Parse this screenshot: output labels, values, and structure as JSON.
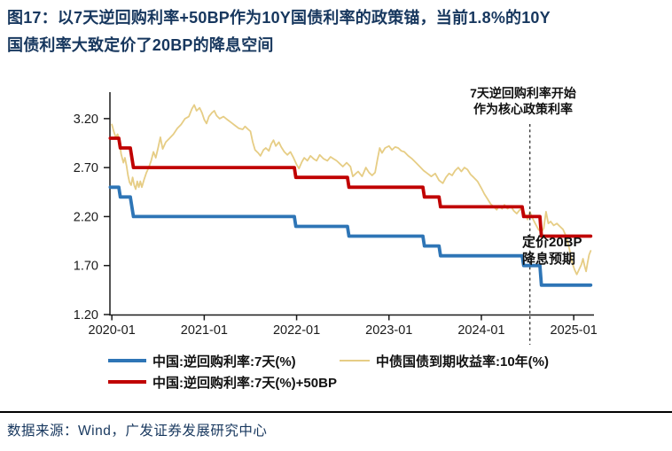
{
  "title": {
    "line1": "图17：以7天逆回购利率+50BP作为10Y国债利率的政策锚，当前1.8%的10Y",
    "line2": "国债利率大致定价了20BP的降息空间"
  },
  "annotations": {
    "policy": {
      "line1": "7天逆回购利率开始",
      "line2": "作为核心政策利率"
    },
    "pricing": {
      "line1": "定价20BP",
      "line2": "降息预期"
    }
  },
  "legend": [
    {
      "label": "中国:逆回购利率:7天(%)",
      "color": "#2e75b6"
    },
    {
      "label": "中债国债到期收益率:10年(%)",
      "color": "#e6cd85"
    },
    {
      "label": "中国:逆回购利率:7天(%)+50BP",
      "color": "#c00000"
    }
  ],
  "source": "数据来源：Wind，广发证券发展研究中心",
  "colors": {
    "title_navy": "#17375e",
    "repo_blue": "#2e75b6",
    "anchor_red": "#c00000",
    "cgb_gold": "#e6cd85",
    "axis_black": "#1a1a1a",
    "dashed_gray": "#3c3c3c"
  },
  "chart_data": {
    "type": "line",
    "x_unit": "months since 2020-01",
    "xlim": [
      -0.25,
      62.4
    ],
    "ylim": [
      1.2,
      3.47
    ],
    "grid": false,
    "y_ticks": [
      {
        "v": 3.2,
        "label": "3.20"
      },
      {
        "v": 2.7,
        "label": "2.70"
      },
      {
        "v": 2.2,
        "label": "2.20"
      },
      {
        "v": 1.7,
        "label": "1.70"
      },
      {
        "v": 1.2,
        "label": "1.20"
      }
    ],
    "x_ticks": [
      {
        "m": 0,
        "label": "2020-01"
      },
      {
        "m": 12,
        "label": "2021-01"
      },
      {
        "m": 24,
        "label": "2022-01"
      },
      {
        "m": 36,
        "label": "2023-01"
      },
      {
        "m": 48,
        "label": "2024-01"
      },
      {
        "m": 60,
        "label": "2025-01"
      }
    ],
    "dashed_line_month": 54.3,
    "series": [
      {
        "name": "中债国债到期收益率:10年(%)",
        "color": "#e6cd85",
        "width": 1.8,
        "points": [
          [
            0,
            3.14
          ],
          [
            0.25,
            3.07
          ],
          [
            0.5,
            3.01
          ],
          [
            0.75,
            3.04
          ],
          [
            1,
            2.96
          ],
          [
            1.2,
            2.84
          ],
          [
            1.5,
            2.75
          ],
          [
            1.7,
            2.8
          ],
          [
            1.9,
            2.72
          ],
          [
            2.1,
            2.62
          ],
          [
            2.3,
            2.55
          ],
          [
            2.5,
            2.52
          ],
          [
            2.7,
            2.6
          ],
          [
            2.9,
            2.52
          ],
          [
            3.1,
            2.48
          ],
          [
            3.3,
            2.56
          ],
          [
            3.5,
            2.5
          ],
          [
            3.7,
            2.56
          ],
          [
            3.9,
            2.5
          ],
          [
            4.2,
            2.58
          ],
          [
            4.5,
            2.65
          ],
          [
            4.8,
            2.7
          ],
          [
            5.1,
            2.77
          ],
          [
            5.4,
            2.86
          ],
          [
            5.7,
            2.8
          ],
          [
            6,
            2.9
          ],
          [
            6.3,
            3.01
          ],
          [
            6.6,
            2.89
          ],
          [
            7,
            2.96
          ],
          [
            7.5,
            3.0
          ],
          [
            8,
            3.04
          ],
          [
            8.5,
            3.1
          ],
          [
            9,
            3.14
          ],
          [
            9.5,
            3.2
          ],
          [
            10,
            3.22
          ],
          [
            10.4,
            3.3
          ],
          [
            10.7,
            3.34
          ],
          [
            11,
            3.28
          ],
          [
            11.4,
            3.31
          ],
          [
            11.7,
            3.26
          ],
          [
            12,
            3.19
          ],
          [
            12.3,
            3.15
          ],
          [
            12.6,
            3.22
          ],
          [
            13,
            3.26
          ],
          [
            13.3,
            3.28
          ],
          [
            13.6,
            3.23
          ],
          [
            14,
            3.2
          ],
          [
            14.5,
            3.22
          ],
          [
            15,
            3.19
          ],
          [
            15.5,
            3.16
          ],
          [
            16,
            3.13
          ],
          [
            16.5,
            3.1
          ],
          [
            17,
            3.09
          ],
          [
            17.3,
            3.12
          ],
          [
            17.7,
            3.09
          ],
          [
            18,
            3.07
          ],
          [
            18.3,
            2.96
          ],
          [
            18.6,
            2.88
          ],
          [
            19,
            2.85
          ],
          [
            19.3,
            2.82
          ],
          [
            19.7,
            2.88
          ],
          [
            20,
            2.9
          ],
          [
            20.4,
            2.87
          ],
          [
            20.7,
            2.94
          ],
          [
            21,
            2.98
          ],
          [
            21.3,
            2.92
          ],
          [
            21.7,
            2.96
          ],
          [
            22,
            2.91
          ],
          [
            22.4,
            2.86
          ],
          [
            22.8,
            2.83
          ],
          [
            23.2,
            2.86
          ],
          [
            23.6,
            2.8
          ],
          [
            24,
            2.73
          ],
          [
            24.3,
            2.69
          ],
          [
            24.7,
            2.76
          ],
          [
            25,
            2.8
          ],
          [
            25.4,
            2.77
          ],
          [
            25.8,
            2.82
          ],
          [
            26.2,
            2.79
          ],
          [
            26.6,
            2.77
          ],
          [
            27,
            2.83
          ],
          [
            27.5,
            2.79
          ],
          [
            28,
            2.77
          ],
          [
            28.4,
            2.81
          ],
          [
            28.8,
            2.79
          ],
          [
            29.2,
            2.77
          ],
          [
            29.6,
            2.74
          ],
          [
            30,
            2.71
          ],
          [
            30.5,
            2.75
          ],
          [
            31,
            2.71
          ],
          [
            31.3,
            2.61
          ],
          [
            31.7,
            2.64
          ],
          [
            32,
            2.66
          ],
          [
            32.5,
            2.61
          ],
          [
            33,
            2.7
          ],
          [
            33.4,
            2.65
          ],
          [
            33.8,
            2.62
          ],
          [
            34.2,
            2.65
          ],
          [
            34.5,
            2.78
          ],
          [
            34.8,
            2.9
          ],
          [
            35.1,
            2.85
          ],
          [
            35.5,
            2.9
          ],
          [
            36,
            2.92
          ],
          [
            36.4,
            2.88
          ],
          [
            36.8,
            2.91
          ],
          [
            37.2,
            2.9
          ],
          [
            37.6,
            2.87
          ],
          [
            38,
            2.86
          ],
          [
            38.5,
            2.82
          ],
          [
            39,
            2.79
          ],
          [
            39.5,
            2.75
          ],
          [
            40,
            2.71
          ],
          [
            40.5,
            2.67
          ],
          [
            41,
            2.64
          ],
          [
            41.5,
            2.61
          ],
          [
            42,
            2.64
          ],
          [
            42.5,
            2.57
          ],
          [
            43,
            2.54
          ],
          [
            43.4,
            2.6
          ],
          [
            43.8,
            2.64
          ],
          [
            44.2,
            2.62
          ],
          [
            44.6,
            2.67
          ],
          [
            45,
            2.7
          ],
          [
            45.4,
            2.66
          ],
          [
            45.8,
            2.7
          ],
          [
            46.2,
            2.68
          ],
          [
            46.6,
            2.63
          ],
          [
            47,
            2.6
          ],
          [
            47.5,
            2.56
          ],
          [
            48,
            2.49
          ],
          [
            48.4,
            2.43
          ],
          [
            48.8,
            2.38
          ],
          [
            49.2,
            2.33
          ],
          [
            49.6,
            2.3
          ],
          [
            50,
            2.27
          ],
          [
            50.3,
            2.31
          ],
          [
            50.7,
            2.28
          ],
          [
            51,
            2.32
          ],
          [
            51.4,
            2.28
          ],
          [
            51.8,
            2.31
          ],
          [
            52.2,
            2.26
          ],
          [
            52.6,
            2.23
          ],
          [
            53,
            2.27
          ],
          [
            53.3,
            2.29
          ],
          [
            53.7,
            2.22
          ],
          [
            54,
            2.17
          ],
          [
            54.3,
            2.25
          ],
          [
            54.6,
            2.19
          ],
          [
            55,
            2.13
          ],
          [
            55.4,
            2.07
          ],
          [
            55.8,
            2.04
          ],
          [
            56.1,
            2.08
          ],
          [
            56.4,
            2.25
          ],
          [
            56.7,
            2.13
          ],
          [
            57,
            2.15
          ],
          [
            57.4,
            2.11
          ],
          [
            57.8,
            2.13
          ],
          [
            58.2,
            2.1
          ],
          [
            58.6,
            2.07
          ],
          [
            59,
            2.0
          ],
          [
            59.4,
            1.88
          ],
          [
            59.8,
            1.73
          ],
          [
            60.1,
            1.66
          ],
          [
            60.4,
            1.61
          ],
          [
            60.7,
            1.66
          ],
          [
            61,
            1.71
          ],
          [
            61.2,
            1.77
          ],
          [
            61.4,
            1.7
          ],
          [
            61.6,
            1.64
          ],
          [
            61.8,
            1.73
          ],
          [
            62,
            1.81
          ],
          [
            62.2,
            1.85
          ]
        ]
      },
      {
        "name": "中国:逆回购利率:7天(%)+50BP",
        "color": "#c00000",
        "width": 3.8,
        "points": [
          [
            -0.2,
            3.0
          ],
          [
            0.9,
            3.0
          ],
          [
            1.1,
            2.9
          ],
          [
            2.4,
            2.9
          ],
          [
            2.8,
            2.7
          ],
          [
            23.7,
            2.7
          ],
          [
            23.9,
            2.6
          ],
          [
            30.6,
            2.6
          ],
          [
            30.8,
            2.5
          ],
          [
            40.4,
            2.5
          ],
          [
            40.6,
            2.4
          ],
          [
            42.5,
            2.4
          ],
          [
            42.7,
            2.3
          ],
          [
            53.3,
            2.3
          ],
          [
            53.5,
            2.2
          ],
          [
            55.6,
            2.2
          ],
          [
            55.8,
            2.0
          ],
          [
            62.2,
            2.0
          ]
        ]
      },
      {
        "name": "中国:逆回购利率:7天(%)",
        "color": "#2e75b6",
        "width": 3.8,
        "points": [
          [
            -0.2,
            2.5
          ],
          [
            0.9,
            2.5
          ],
          [
            1.1,
            2.4
          ],
          [
            2.4,
            2.4
          ],
          [
            2.8,
            2.2
          ],
          [
            23.7,
            2.2
          ],
          [
            23.9,
            2.1
          ],
          [
            30.6,
            2.1
          ],
          [
            30.8,
            2.0
          ],
          [
            40.4,
            2.0
          ],
          [
            40.6,
            1.9
          ],
          [
            42.5,
            1.9
          ],
          [
            42.7,
            1.8
          ],
          [
            53.3,
            1.8
          ],
          [
            53.5,
            1.7
          ],
          [
            55.6,
            1.7
          ],
          [
            55.8,
            1.5
          ],
          [
            62.2,
            1.5
          ]
        ]
      }
    ]
  }
}
